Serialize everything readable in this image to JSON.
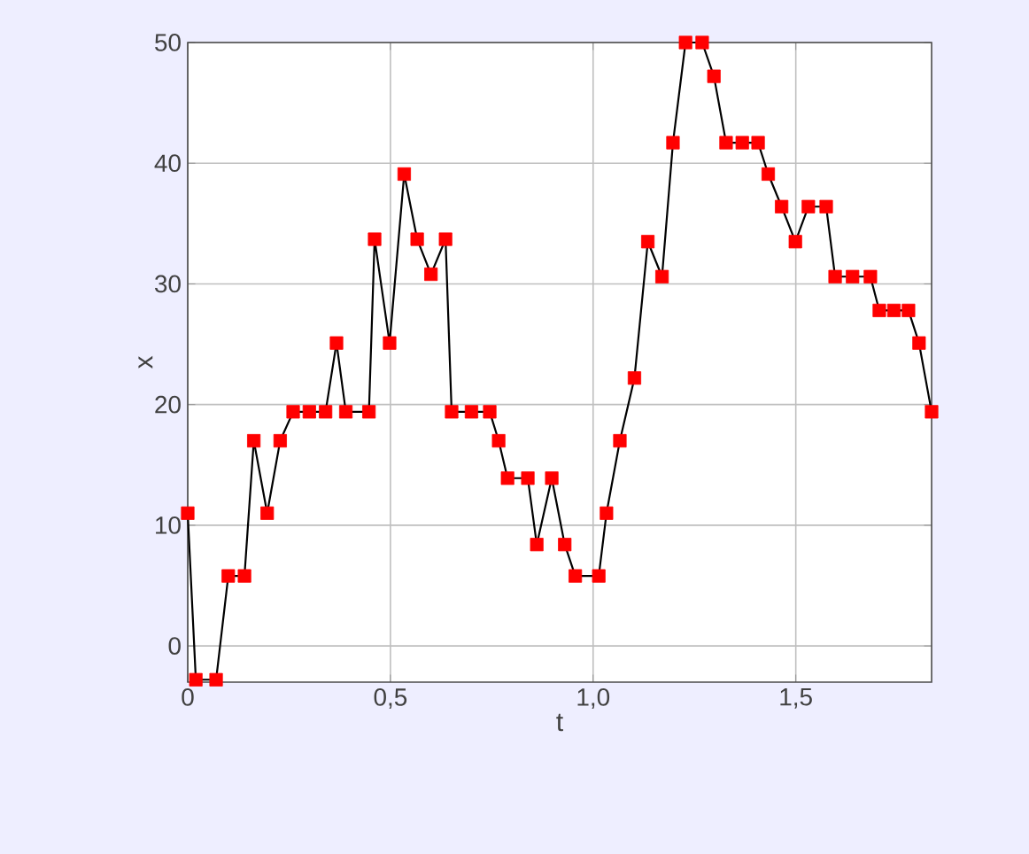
{
  "chart_data": {
    "type": "line",
    "xlabel": "t",
    "ylabel": "x",
    "xlim": [
      0,
      1.835
    ],
    "ylim": [
      -3,
      50
    ],
    "xticks": [
      0,
      {
        "value": 0.5,
        "label": "0,5"
      },
      {
        "value": 1.0,
        "label": "1,0"
      },
      {
        "value": 1.5,
        "label": "1,5"
      }
    ],
    "yticks": [
      0,
      10,
      20,
      30,
      40,
      50
    ],
    "grid": true,
    "marker": "square",
    "series": [
      {
        "color": "#000000",
        "colors": [
          "#ff0000",
          "#ff0000",
          "#ff0000",
          "#ff0000",
          "#ff0000",
          "#ff0000",
          "#ff0000",
          "#ff0000",
          "#ff0000",
          "#ff0000",
          "#ff0000",
          "#ff0000",
          "#ff0000",
          "#ff0000",
          "#ff0000",
          "#ff0000",
          "#ff0000",
          "#ff0000",
          "#ff0000",
          "#ff0000",
          "#ff0000",
          "#ff0000",
          "#ff0000",
          "#ff0000",
          "#ff0000",
          "#ff0000",
          "#ff0000",
          "#ff0000",
          "#ff0000",
          "#ff0000",
          "#ff0000",
          "#ff0000",
          "#ff0000",
          "#ff0000",
          "#ff0000",
          "#ff0000",
          "#ff0000",
          "#ff0000",
          "#ff0000",
          "#ff0000",
          "#ff0000",
          "#ff0000",
          "#ff0000",
          "#ff0000",
          "#ff0000",
          "#ff0000",
          "#ff0000",
          "#ff0000",
          "#ff0000",
          "#ff0000",
          "#ff0000",
          "#ff0000",
          "#ff0000",
          "#ff0000",
          "#ff0000",
          "#ff0000"
        ],
        "x": [
          0,
          0.02,
          0.07,
          0.1,
          0.14,
          0.163,
          0.196,
          0.228,
          0.26,
          0.3,
          0.34,
          0.367,
          0.39,
          0.447,
          0.461,
          0.498,
          0.534,
          0.566,
          0.6,
          0.636,
          0.651,
          0.7,
          0.745,
          0.767,
          0.789,
          0.839,
          0.861,
          0.898,
          0.93,
          0.956,
          1.014,
          1.033,
          1.066,
          1.102,
          1.135,
          1.17,
          1.197,
          1.228,
          1.269,
          1.298,
          1.328,
          1.368,
          1.407,
          1.432,
          1.465,
          1.499,
          1.531,
          1.575,
          1.597,
          1.64,
          1.684,
          1.706,
          1.742,
          1.778,
          1.804,
          1.835
        ],
        "values": [
          11,
          -2.8,
          -2.8,
          5.8,
          5.8,
          17,
          11,
          17,
          19.4,
          19.4,
          19.4,
          25.1,
          19.4,
          19.4,
          33.7,
          25.1,
          39.1,
          33.7,
          30.8,
          33.7,
          19.4,
          19.4,
          19.4,
          17,
          13.9,
          13.9,
          8.4,
          13.9,
          8.4,
          5.8,
          5.8,
          11,
          17,
          22.2,
          33.5,
          30.6,
          41.7,
          50,
          50,
          47.2,
          41.7,
          41.7,
          41.7,
          39.1,
          36.4,
          33.5,
          36.4,
          36.4,
          30.6,
          30.6,
          30.6,
          27.8,
          27.8,
          27.8,
          25.1,
          19.4
        ]
      }
    ]
  }
}
